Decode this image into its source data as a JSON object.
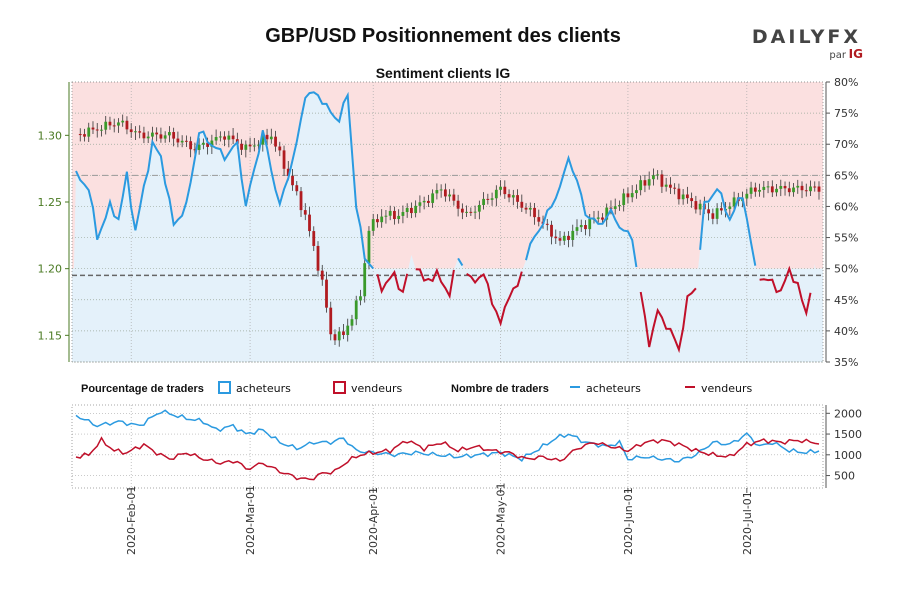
{
  "header": {
    "title": "GBP/USD Positionnement des clients",
    "brand": "DAILYFX",
    "brand_sub": "par",
    "brand_ig": "IG"
  },
  "colors": {
    "buyers": "#2b9ae0",
    "sellers": "#c0102a",
    "bull": "#3a9a2a",
    "bear": "#b01b20",
    "bg_buyers": "#e4f1fa",
    "bg_sellers": "#fbe0e0",
    "left_axis": "#4a7a23"
  },
  "chart_data": [
    {
      "type": "candlestick+line",
      "title": "Sentiment clients IG",
      "x_tick_labels": [
        "2020-Feb-01",
        "2020-Mar-01",
        "2020-Apr-01",
        "2020-May-01",
        "2020-Jun-01",
        "2020-Jul-01"
      ],
      "x_tick_positions": [
        13,
        41,
        70,
        100,
        130,
        158
      ],
      "n_points": 176,
      "price_axis": {
        "ylim": [
          1.13,
          1.34
        ],
        "ticks": [
          "1.15",
          "1.20",
          "1.25",
          "1.30"
        ],
        "tick_values": [
          1.15,
          1.2,
          1.25,
          1.3
        ]
      },
      "sentiment_axis": {
        "ylim": [
          35,
          80
        ],
        "ticks": [
          "35%",
          "40%",
          "45%",
          "50%",
          "55%",
          "60%",
          "65%",
          "70%",
          "75%",
          "80%"
        ],
        "tick_values": [
          35,
          40,
          45,
          50,
          55,
          60,
          65,
          70,
          75,
          80
        ]
      },
      "reference_line": 50,
      "reference_price": 1.195,
      "upper_dashed_price": 1.27,
      "price_keypoints": [
        [
          0,
          1.3
        ],
        [
          10,
          1.31
        ],
        [
          15,
          1.3
        ],
        [
          22,
          1.3
        ],
        [
          28,
          1.29
        ],
        [
          35,
          1.3
        ],
        [
          40,
          1.29
        ],
        [
          46,
          1.3
        ],
        [
          50,
          1.27
        ],
        [
          54,
          1.24
        ],
        [
          58,
          1.19
        ],
        [
          60,
          1.15
        ],
        [
          63,
          1.15
        ],
        [
          67,
          1.18
        ],
        [
          69,
          1.23
        ],
        [
          72,
          1.24
        ],
        [
          76,
          1.24
        ],
        [
          82,
          1.25
        ],
        [
          86,
          1.26
        ],
        [
          92,
          1.24
        ],
        [
          96,
          1.25
        ],
        [
          100,
          1.26
        ],
        [
          104,
          1.25
        ],
        [
          108,
          1.24
        ],
        [
          111,
          1.23
        ],
        [
          114,
          1.22
        ],
        [
          118,
          1.23
        ],
        [
          124,
          1.24
        ],
        [
          128,
          1.25
        ],
        [
          132,
          1.26
        ],
        [
          136,
          1.27
        ],
        [
          140,
          1.26
        ],
        [
          145,
          1.25
        ],
        [
          150,
          1.24
        ],
        [
          155,
          1.25
        ],
        [
          160,
          1.26
        ],
        [
          166,
          1.26
        ],
        [
          170,
          1.26
        ],
        [
          175,
          1.26
        ]
      ],
      "sentiment_keypoints": [
        [
          0,
          65
        ],
        [
          3,
          63
        ],
        [
          5,
          55
        ],
        [
          8,
          60
        ],
        [
          10,
          58
        ],
        [
          12,
          65
        ],
        [
          14,
          56
        ],
        [
          18,
          70
        ],
        [
          20,
          68
        ],
        [
          23,
          57
        ],
        [
          26,
          60
        ],
        [
          29,
          72
        ],
        [
          32,
          70
        ],
        [
          35,
          68
        ],
        [
          38,
          70
        ],
        [
          40,
          60
        ],
        [
          44,
          72
        ],
        [
          48,
          60
        ],
        [
          52,
          70
        ],
        [
          54,
          78
        ],
        [
          57,
          78
        ],
        [
          60,
          75
        ],
        [
          62,
          74
        ],
        [
          64,
          78
        ],
        [
          66,
          60
        ],
        [
          68,
          52
        ],
        [
          70,
          50
        ],
        [
          72,
          47
        ],
        [
          75,
          49
        ],
        [
          77,
          46
        ],
        [
          79,
          52
        ],
        [
          82,
          48
        ],
        [
          85,
          49
        ],
        [
          88,
          46
        ],
        [
          90,
          52
        ],
        [
          93,
          48
        ],
        [
          96,
          49
        ],
        [
          100,
          41
        ],
        [
          102,
          46
        ],
        [
          104,
          47
        ],
        [
          106,
          52
        ],
        [
          108,
          55
        ],
        [
          112,
          60
        ],
        [
          115,
          65
        ],
        [
          116,
          68
        ],
        [
          118,
          64
        ],
        [
          120,
          59
        ],
        [
          123,
          57
        ],
        [
          126,
          59
        ],
        [
          129,
          56
        ],
        [
          131,
          55
        ],
        [
          133,
          46
        ],
        [
          135,
          38
        ],
        [
          137,
          43
        ],
        [
          140,
          40
        ],
        [
          142,
          37
        ],
        [
          144,
          45
        ],
        [
          146,
          47
        ],
        [
          148,
          60
        ],
        [
          151,
          63
        ],
        [
          154,
          58
        ],
        [
          157,
          62
        ],
        [
          160,
          50
        ],
        [
          162,
          48
        ],
        [
          164,
          48
        ],
        [
          166,
          46
        ],
        [
          168,
          50
        ],
        [
          170,
          47
        ],
        [
          172,
          43
        ],
        [
          174,
          50
        ],
        [
          175,
          46
        ]
      ],
      "lower_panel": {
        "yticks": [
          "500",
          "1000",
          "1500",
          "2000"
        ],
        "ytick_values": [
          500,
          1000,
          1500,
          2000
        ],
        "ylim": [
          200,
          2200
        ],
        "buyers_keypoints": [
          [
            0,
            1950
          ],
          [
            5,
            1700
          ],
          [
            10,
            1800
          ],
          [
            15,
            1700
          ],
          [
            20,
            2050
          ],
          [
            25,
            1900
          ],
          [
            30,
            1800
          ],
          [
            33,
            1600
          ],
          [
            37,
            1700
          ],
          [
            40,
            1500
          ],
          [
            44,
            1600
          ],
          [
            48,
            1300
          ],
          [
            52,
            1150
          ],
          [
            56,
            1300
          ],
          [
            60,
            1300
          ],
          [
            63,
            1400
          ],
          [
            66,
            1100
          ],
          [
            70,
            1050
          ],
          [
            75,
            1000
          ],
          [
            80,
            1050
          ],
          [
            85,
            1000
          ],
          [
            90,
            950
          ],
          [
            95,
            1000
          ],
          [
            100,
            1050
          ],
          [
            105,
            900
          ],
          [
            110,
            1200
          ],
          [
            113,
            1400
          ],
          [
            116,
            1500
          ],
          [
            120,
            1300
          ],
          [
            125,
            1200
          ],
          [
            128,
            1300
          ],
          [
            130,
            900
          ],
          [
            134,
            950
          ],
          [
            138,
            900
          ],
          [
            142,
            850
          ],
          [
            146,
            1000
          ],
          [
            150,
            1300
          ],
          [
            154,
            1250
          ],
          [
            158,
            1500
          ],
          [
            161,
            1200
          ],
          [
            164,
            1300
          ],
          [
            168,
            1100
          ],
          [
            172,
            1050
          ],
          [
            175,
            1100
          ]
        ],
        "sellers_keypoints": [
          [
            0,
            950
          ],
          [
            3,
            1000
          ],
          [
            6,
            1350
          ],
          [
            9,
            1100
          ],
          [
            12,
            1050
          ],
          [
            16,
            1250
          ],
          [
            18,
            1100
          ],
          [
            22,
            900
          ],
          [
            26,
            1050
          ],
          [
            30,
            900
          ],
          [
            34,
            800
          ],
          [
            38,
            850
          ],
          [
            40,
            650
          ],
          [
            44,
            800
          ],
          [
            48,
            600
          ],
          [
            52,
            450
          ],
          [
            55,
            400
          ],
          [
            58,
            550
          ],
          [
            61,
            600
          ],
          [
            64,
            850
          ],
          [
            67,
            1000
          ],
          [
            70,
            1050
          ],
          [
            74,
            1100
          ],
          [
            78,
            1350
          ],
          [
            82,
            1150
          ],
          [
            86,
            1300
          ],
          [
            90,
            1100
          ],
          [
            94,
            1200
          ],
          [
            98,
            1100
          ],
          [
            102,
            1050
          ],
          [
            106,
            900
          ],
          [
            110,
            950
          ],
          [
            114,
            850
          ],
          [
            118,
            1150
          ],
          [
            122,
            1300
          ],
          [
            126,
            1200
          ],
          [
            130,
            1100
          ],
          [
            134,
            1300
          ],
          [
            138,
            1350
          ],
          [
            142,
            1250
          ],
          [
            146,
            1100
          ],
          [
            150,
            1000
          ],
          [
            154,
            950
          ],
          [
            158,
            1250
          ],
          [
            162,
            1350
          ],
          [
            166,
            1300
          ],
          [
            170,
            1350
          ],
          [
            175,
            1280
          ]
        ]
      }
    }
  ],
  "legend": {
    "group1_title": "Pourcentage de traders",
    "buyers": "acheteurs",
    "sellers": "vendeurs",
    "group2_title": "Nombre de traders",
    "buyers2": "acheteurs",
    "sellers2": "vendeurs"
  }
}
